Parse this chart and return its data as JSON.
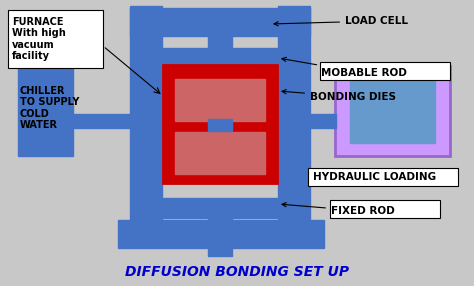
{
  "bg_color": "#c8c8c8",
  "title": "DIFFUSION BONDING SET UP",
  "title_color": "#0000cc",
  "title_fontsize": 10,
  "blue": "#4472c4",
  "red": "#cc0000",
  "pink_fill": "#cc6666",
  "purple": "#cc99ff",
  "purple_inner": "#6699cc",
  "white": "#ffffff",
  "labels": {
    "load_cell": "LOAD CELL",
    "movable_rod": "MOBABLE ROD",
    "bonding_dies": "BONDING DIES",
    "hydraulic": "HYDRAULIC LOADING",
    "fixed_rod": "FIXED ROD",
    "furnace": "FURNACE\nWith high\nvacuum\nfacility",
    "chiller": "CHILLER\nTO SUPPLY\nCOLD\nWATER"
  }
}
